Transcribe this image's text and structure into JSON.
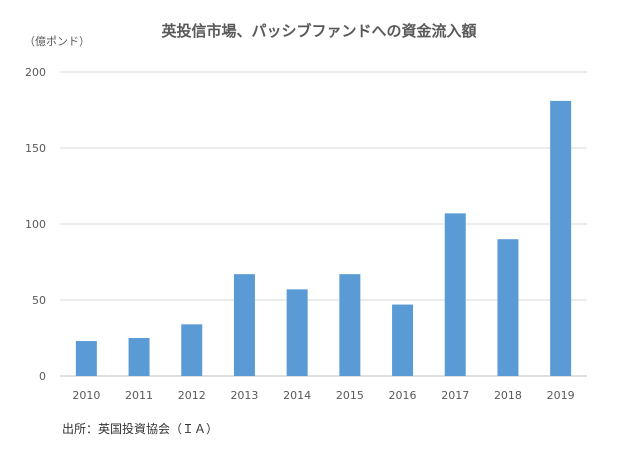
{
  "chart_data": {
    "type": "bar",
    "title": "英投信市場、パッシブファンドへの資金流入額",
    "unit_label": "（億ポンド）",
    "source": "出所：英国投資協会（ＩＡ）",
    "categories": [
      "2010",
      "2011",
      "2012",
      "2013",
      "2014",
      "2015",
      "2016",
      "2017",
      "2018",
      "2019"
    ],
    "values": [
      23,
      25,
      34,
      67,
      57,
      67,
      47,
      107,
      90,
      181
    ],
    "ylim": [
      0,
      200
    ],
    "yticks": [
      "0",
      "50",
      "100",
      "150",
      "200"
    ],
    "grid": true,
    "bar_color": "#5B9BD5",
    "grid_color": "#D9D9D9"
  }
}
